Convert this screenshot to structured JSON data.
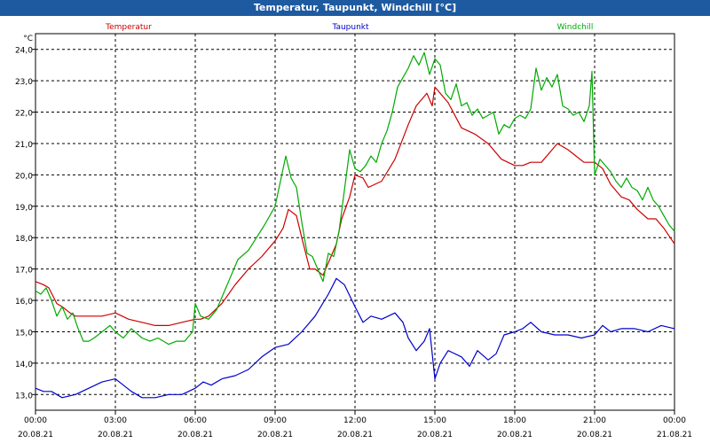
{
  "window": {
    "title": "Temperatur, Taupunkt, Windchill [°C]"
  },
  "chart_data": {
    "type": "line",
    "title": "Temperatur, Taupunkt, Windchill [°C]",
    "y_unit": "°C",
    "ylim": [
      12.5,
      24.5
    ],
    "yticks": [
      "13,0",
      "14,0",
      "15,0",
      "16,0",
      "17,0",
      "18,0",
      "19,0",
      "20,0",
      "21,0",
      "22,0",
      "23,0",
      "24,0"
    ],
    "xlim": [
      0,
      24
    ],
    "x_unit": "hours since 20.08.21 00:00",
    "xticks": [
      {
        "time": "00:00",
        "date": "20.08.21"
      },
      {
        "time": "03:00",
        "date": "20.08.21"
      },
      {
        "time": "06:00",
        "date": "20.08.21"
      },
      {
        "time": "09:00",
        "date": "20.08.21"
      },
      {
        "time": "12:00",
        "date": "20.08.21"
      },
      {
        "time": "15:00",
        "date": "20.08.21"
      },
      {
        "time": "18:00",
        "date": "20.08.21"
      },
      {
        "time": "21:00",
        "date": "20.08.21"
      },
      {
        "time": "00:00",
        "date": "21.08.21"
      }
    ],
    "grid": true,
    "legend_position": "top",
    "series": [
      {
        "name": "Temperatur",
        "color": "#cc0000",
        "x": [
          0,
          0.3,
          0.5,
          0.8,
          1,
          1.3,
          1.5,
          2,
          2.5,
          3,
          3.5,
          4,
          4.5,
          5,
          5.5,
          6,
          6.2,
          6.5,
          7,
          7.5,
          8,
          8.5,
          9,
          9.3,
          9.5,
          9.8,
          10,
          10.3,
          10.5,
          10.8,
          11,
          11.3,
          11.5,
          11.8,
          12,
          12.3,
          12.5,
          13,
          13.5,
          14,
          14.3,
          14.5,
          14.7,
          14.9,
          15,
          15.2,
          15.5,
          16,
          16.5,
          17,
          17.5,
          18,
          18.3,
          18.6,
          18.8,
          19,
          19.3,
          19.6,
          20,
          20.3,
          20.6,
          21,
          21.3,
          21.6,
          22,
          22.3,
          22.6,
          23,
          23.3,
          23.6,
          24
        ],
        "y": [
          16.6,
          16.5,
          16.4,
          15.9,
          15.8,
          15.6,
          15.5,
          15.5,
          15.5,
          15.6,
          15.4,
          15.3,
          15.2,
          15.2,
          15.3,
          15.4,
          15.4,
          15.5,
          15.9,
          16.5,
          17.0,
          17.4,
          17.9,
          18.3,
          18.9,
          18.7,
          18.0,
          17.0,
          17.0,
          16.8,
          17.2,
          17.8,
          18.6,
          19.3,
          20.0,
          19.9,
          19.6,
          19.8,
          20.5,
          21.6,
          22.2,
          22.4,
          22.6,
          22.2,
          22.8,
          22.6,
          22.3,
          21.5,
          21.3,
          21.0,
          20.5,
          20.3,
          20.3,
          20.4,
          20.4,
          20.4,
          20.7,
          21.0,
          20.8,
          20.6,
          20.4,
          20.4,
          20.2,
          19.7,
          19.3,
          19.2,
          18.9,
          18.6,
          18.6,
          18.3,
          17.8
        ]
      },
      {
        "name": "Taupunkt",
        "color": "#0000cc",
        "x": [
          0,
          0.3,
          0.6,
          1,
          1.5,
          2,
          2.5,
          3,
          3.3,
          3.6,
          4,
          4.5,
          5,
          5.5,
          6,
          6.3,
          6.6,
          7,
          7.5,
          8,
          8.5,
          9,
          9.5,
          10,
          10.5,
          11,
          11.3,
          11.6,
          12,
          12.3,
          12.6,
          13,
          13.5,
          13.8,
          14,
          14.3,
          14.6,
          14.8,
          15,
          15.2,
          15.5,
          16,
          16.3,
          16.6,
          17,
          17.3,
          17.6,
          18,
          18.3,
          18.6,
          19,
          19.5,
          20,
          20.5,
          21,
          21.3,
          21.6,
          22,
          22.5,
          23,
          23.5,
          24
        ],
        "y": [
          13.2,
          13.1,
          13.1,
          12.9,
          13.0,
          13.2,
          13.4,
          13.5,
          13.3,
          13.1,
          12.9,
          12.9,
          13.0,
          13.0,
          13.2,
          13.4,
          13.3,
          13.5,
          13.6,
          13.8,
          14.2,
          14.5,
          14.6,
          15.0,
          15.5,
          16.2,
          16.7,
          16.5,
          15.8,
          15.3,
          15.5,
          15.4,
          15.6,
          15.3,
          14.8,
          14.4,
          14.7,
          15.1,
          13.5,
          14.0,
          14.4,
          14.2,
          13.9,
          14.4,
          14.1,
          14.3,
          14.9,
          15.0,
          15.1,
          15.3,
          15.0,
          14.9,
          14.9,
          14.8,
          14.9,
          15.2,
          15.0,
          15.1,
          15.1,
          15.0,
          15.2,
          15.1
        ]
      },
      {
        "name": "Windchill",
        "color": "#00aa00",
        "x": [
          0,
          0.2,
          0.4,
          0.6,
          0.8,
          1,
          1.2,
          1.4,
          1.6,
          1.8,
          2,
          2.2,
          2.5,
          2.8,
          3,
          3.3,
          3.6,
          4,
          4.3,
          4.6,
          5,
          5.3,
          5.6,
          5.9,
          6,
          6.2,
          6.5,
          6.8,
          7,
          7.3,
          7.6,
          8,
          8.3,
          8.6,
          9,
          9.2,
          9.4,
          9.6,
          9.8,
          10,
          10.2,
          10.4,
          10.6,
          10.8,
          11,
          11.2,
          11.4,
          11.6,
          11.8,
          12,
          12.2,
          12.4,
          12.6,
          12.8,
          13,
          13.2,
          13.4,
          13.6,
          13.8,
          14,
          14.2,
          14.4,
          14.6,
          14.8,
          15,
          15.2,
          15.4,
          15.6,
          15.8,
          16,
          16.2,
          16.4,
          16.6,
          16.8,
          17,
          17.2,
          17.4,
          17.6,
          17.8,
          18,
          18.2,
          18.4,
          18.6,
          18.8,
          19,
          19.2,
          19.4,
          19.6,
          19.8,
          20,
          20.2,
          20.4,
          20.6,
          20.8,
          20.9,
          21,
          21.2,
          21.4,
          21.6,
          21.8,
          22,
          22.2,
          22.4,
          22.6,
          22.8,
          23,
          23.2,
          23.4,
          23.6,
          23.8,
          24
        ],
        "y": [
          16.3,
          16.2,
          16.4,
          16.0,
          15.5,
          15.8,
          15.4,
          15.6,
          15.1,
          14.7,
          14.7,
          14.8,
          15.0,
          15.2,
          15.0,
          14.8,
          15.1,
          14.8,
          14.7,
          14.8,
          14.6,
          14.7,
          14.7,
          15.0,
          15.9,
          15.5,
          15.4,
          15.7,
          16.1,
          16.7,
          17.3,
          17.6,
          18.0,
          18.4,
          19.0,
          19.8,
          20.6,
          19.9,
          19.6,
          18.5,
          17.5,
          17.4,
          17.0,
          16.6,
          17.5,
          17.4,
          18.2,
          19.5,
          20.8,
          20.2,
          20.1,
          20.3,
          20.6,
          20.4,
          21.0,
          21.4,
          22.0,
          22.8,
          23.1,
          23.4,
          23.8,
          23.5,
          23.9,
          23.2,
          23.7,
          23.5,
          22.6,
          22.4,
          22.9,
          22.2,
          22.3,
          21.9,
          22.1,
          21.8,
          21.9,
          22.0,
          21.3,
          21.6,
          21.5,
          21.8,
          21.9,
          21.8,
          22.1,
          23.4,
          22.7,
          23.1,
          22.8,
          23.2,
          22.2,
          22.1,
          21.9,
          22.0,
          21.7,
          22.2,
          23.3,
          20.0,
          20.5,
          20.3,
          20.1,
          19.8,
          19.6,
          19.9,
          19.6,
          19.5,
          19.2,
          19.6,
          19.2,
          19.0,
          18.7,
          18.4,
          18.2
        ]
      }
    ]
  }
}
